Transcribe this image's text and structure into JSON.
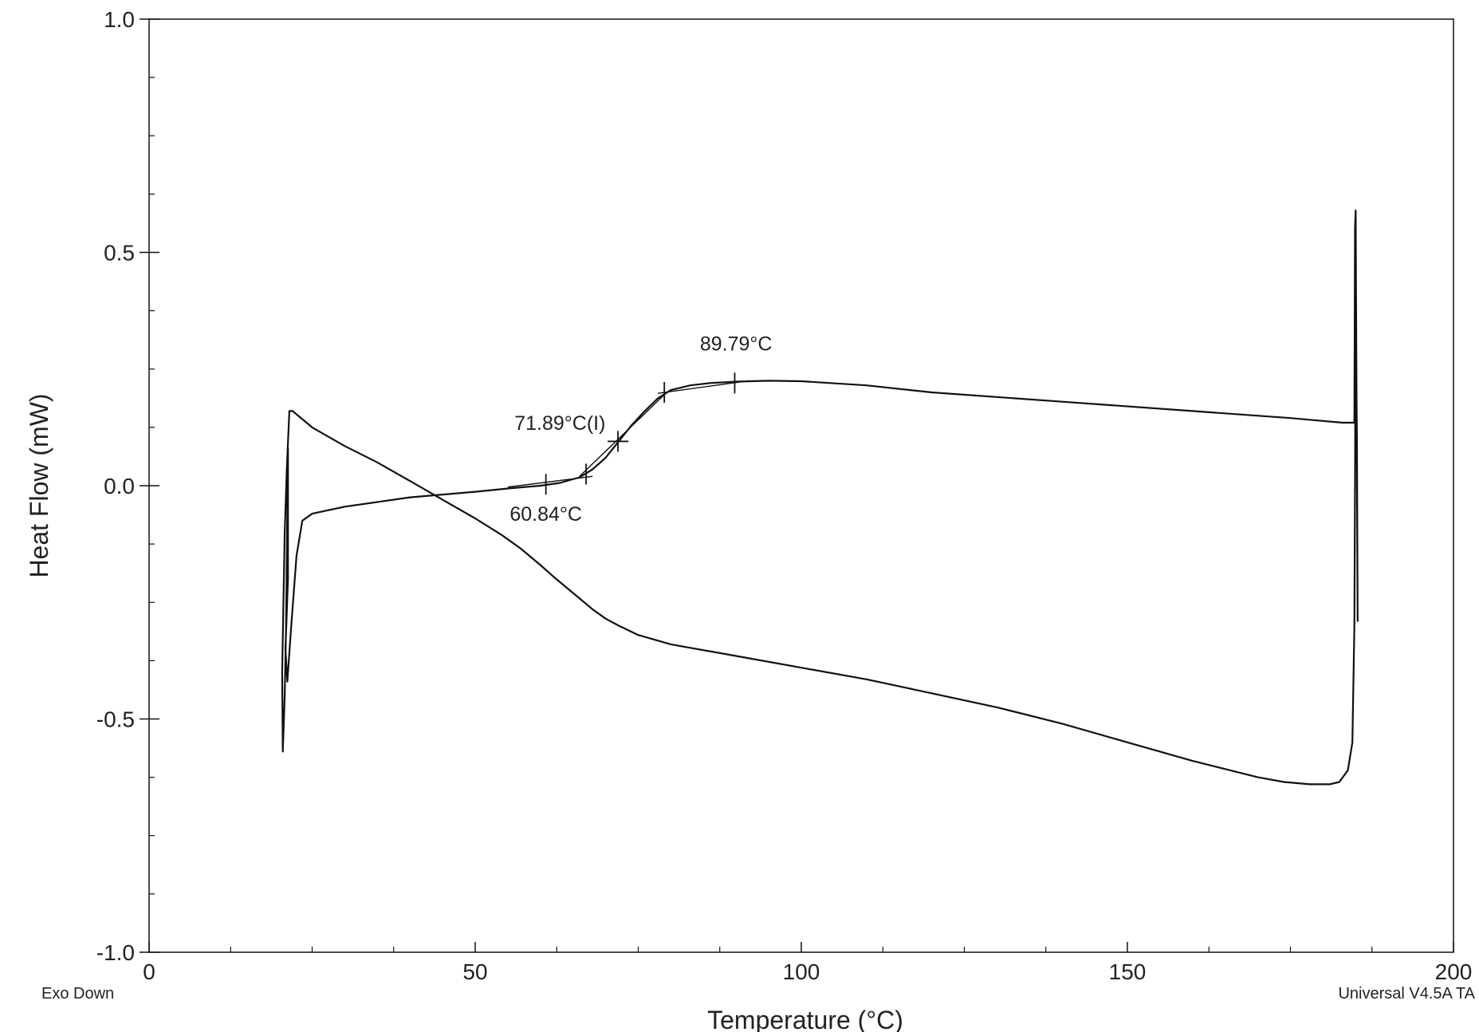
{
  "chart_data": {
    "type": "line",
    "xlabel": "Temperature (°C)",
    "ylabel": "Heat Flow (mW)",
    "xlim": [
      0,
      200
    ],
    "ylim": [
      -1.0,
      1.0
    ],
    "x_ticks": [
      0,
      50,
      100,
      150,
      200
    ],
    "x_tick_labels": [
      "0",
      "50",
      "100",
      "150",
      "200"
    ],
    "y_ticks": [
      1.0,
      0.5,
      0.0,
      -0.5,
      -1.0
    ],
    "y_tick_labels": [
      "1.0",
      "0.5",
      "0.0",
      "-0.5",
      "-1.0"
    ],
    "x_minor_step": 12.5,
    "y_minor_step": 0.125,
    "grid": false,
    "footer_left": "Exo Down",
    "footer_right": "Universal V4.5A TA",
    "series": [
      {
        "name": "heat-flow-trace",
        "points": [
          [
            21.1,
            0.03
          ],
          [
            20.8,
            -0.1
          ],
          [
            20.4,
            -0.4
          ],
          [
            20.5,
            -0.57
          ],
          [
            20.8,
            -0.45
          ],
          [
            21.0,
            -0.3
          ],
          [
            21.3,
            0.08
          ],
          [
            21.3,
            -0.2
          ],
          [
            20.9,
            -0.35
          ],
          [
            21.2,
            -0.42
          ],
          [
            21.8,
            -0.3
          ],
          [
            22.6,
            -0.15
          ],
          [
            23.5,
            -0.075
          ],
          [
            25,
            -0.06
          ],
          [
            30,
            -0.045
          ],
          [
            40,
            -0.025
          ],
          [
            50,
            -0.013
          ],
          [
            55,
            -0.006
          ],
          [
            60,
            0.0
          ],
          [
            63,
            0.006
          ],
          [
            66,
            0.018
          ],
          [
            68,
            0.035
          ],
          [
            70,
            0.06
          ],
          [
            72,
            0.095
          ],
          [
            74,
            0.13
          ],
          [
            76,
            0.16
          ],
          [
            78,
            0.187
          ],
          [
            80,
            0.205
          ],
          [
            83,
            0.215
          ],
          [
            86,
            0.22
          ],
          [
            90,
            0.223
          ],
          [
            95,
            0.225
          ],
          [
            100,
            0.224
          ],
          [
            110,
            0.215
          ],
          [
            120,
            0.2
          ],
          [
            140,
            0.18
          ],
          [
            160,
            0.16
          ],
          [
            175,
            0.145
          ],
          [
            183,
            0.135
          ],
          [
            184.8,
            0.135
          ],
          [
            184.9,
            0.55
          ],
          [
            185.0,
            0.59
          ],
          [
            185.1,
            0.3
          ],
          [
            185.3,
            -0.29
          ],
          [
            185.2,
            0.1
          ],
          [
            185.0,
            0.4
          ],
          [
            184.9,
            0.0
          ],
          [
            184.8,
            -0.3
          ],
          [
            184.5,
            -0.55
          ],
          [
            183.8,
            -0.61
          ],
          [
            182.5,
            -0.635
          ],
          [
            181,
            -0.64
          ],
          [
            178,
            -0.64
          ],
          [
            174,
            -0.635
          ],
          [
            170,
            -0.625
          ],
          [
            160,
            -0.59
          ],
          [
            150,
            -0.55
          ],
          [
            140,
            -0.51
          ],
          [
            130,
            -0.475
          ],
          [
            120,
            -0.445
          ],
          [
            110,
            -0.415
          ],
          [
            100,
            -0.39
          ],
          [
            90,
            -0.365
          ],
          [
            80,
            -0.34
          ],
          [
            75,
            -0.32
          ],
          [
            72,
            -0.3
          ],
          [
            70,
            -0.285
          ],
          [
            68,
            -0.265
          ],
          [
            65,
            -0.23
          ],
          [
            62,
            -0.195
          ],
          [
            60,
            -0.17
          ],
          [
            57,
            -0.135
          ],
          [
            54,
            -0.105
          ],
          [
            50,
            -0.07
          ],
          [
            45,
            -0.03
          ],
          [
            40,
            0.01
          ],
          [
            35,
            0.05
          ],
          [
            30,
            0.085
          ],
          [
            25,
            0.125
          ],
          [
            22,
            0.16
          ],
          [
            21.5,
            0.16
          ],
          [
            21.1,
            0.03
          ]
        ]
      }
    ],
    "markers": [
      {
        "name": "onset-marker",
        "x": 60.84,
        "y": 0.003
      },
      {
        "name": "onset-limit-marker",
        "x": 67.0,
        "y": 0.025
      },
      {
        "name": "midpoint-marker",
        "x": 71.89,
        "y": 0.095
      },
      {
        "name": "end-limit-marker",
        "x": 79.0,
        "y": 0.2
      },
      {
        "name": "endset-marker",
        "x": 89.79,
        "y": 0.22
      }
    ],
    "tangent_lines": [
      {
        "name": "baseline-tangent",
        "from": [
          55,
          -0.003
        ],
        "to": [
          68,
          0.02
        ]
      },
      {
        "name": "inflection-tangent",
        "from": [
          66,
          0.02
        ],
        "to": [
          79,
          0.195
        ]
      },
      {
        "name": "upper-tangent",
        "from": [
          78,
          0.198
        ],
        "to": [
          92,
          0.225
        ]
      }
    ],
    "annotations": [
      {
        "name": "onset-label",
        "text": "60.84°C",
        "x": 60.84,
        "y": -0.075
      },
      {
        "name": "midpoint-label",
        "text": "71.89°C(I)",
        "x": 63.0,
        "y": 0.12
      },
      {
        "name": "endset-label",
        "text": "89.79°C",
        "x": 90.0,
        "y": 0.29
      }
    ]
  }
}
